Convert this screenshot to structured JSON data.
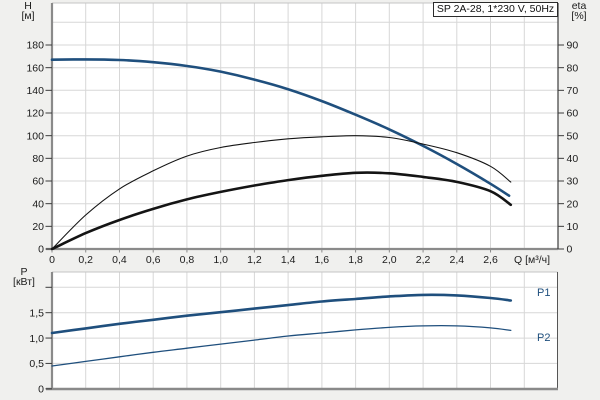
{
  "title_box": {
    "text": "SP 2A-28, 1*230 V, 50Hz"
  },
  "axes_units": {
    "h_symbol": "H",
    "h_unit": "[м]",
    "eta_symbol": "eta",
    "eta_unit": "[%]",
    "p_symbol": "P",
    "p_unit": "[кВт]",
    "q_label": "Q [м³/ч]"
  },
  "curve_labels": {
    "p1": "P1",
    "p2": "P2"
  },
  "colors": {
    "curve_blue": "#1f4f7d",
    "curve_black": "#141414",
    "grid": "#d7d7d7",
    "axis_gray": "#8a8a8a",
    "axis_dark": "#3c3c3c",
    "background": "#f0f0ee",
    "plot_background": "#ffffff",
    "tick_text": "#1b1b1b",
    "blue_label": "#1f4f7d"
  },
  "chart_data": [
    {
      "type": "line",
      "title": "SP 2A-28, 1*230 V, 50Hz",
      "xlabel": "Q [м³/ч]",
      "ylabel_left": "H [м]",
      "ylabel_right": "eta [%]",
      "xlim": [
        0,
        3.0
      ],
      "grid": true,
      "x_ticks": {
        "values": [
          0,
          0.2,
          0.4,
          0.6,
          0.8,
          1.0,
          1.2,
          1.4,
          1.6,
          1.8,
          2.0,
          2.2,
          2.4,
          2.6
        ],
        "labels": [
          "0",
          "0,2",
          "0,4",
          "0,6",
          "0,8",
          "1,0",
          "1,2",
          "1,4",
          "1,6",
          "1,8",
          "2,0",
          "2,2",
          "2,4",
          "2,6"
        ]
      },
      "left_axis": {
        "ylim": [
          0,
          217
        ],
        "tick_values": [
          0,
          20,
          40,
          60,
          80,
          100,
          120,
          140,
          160,
          180
        ],
        "tick_labels": [
          "0",
          "20",
          "40",
          "60",
          "80",
          "100",
          "120",
          "140",
          "160",
          "180"
        ],
        "grid_values": [
          20,
          40,
          60,
          80,
          100,
          120,
          140,
          160,
          180,
          200
        ]
      },
      "right_axis": {
        "ylim": [
          0,
          108
        ],
        "tick_values": [
          0,
          10,
          20,
          30,
          40,
          50,
          60,
          70,
          80,
          90
        ],
        "tick_labels": [
          "0",
          "10",
          "20",
          "30",
          "40",
          "50",
          "60",
          "70",
          "80",
          "90"
        ]
      },
      "series": [
        {
          "name": "H",
          "axis": "left",
          "color": "blue",
          "width": 2.6,
          "points": [
            [
              0,
              167
            ],
            [
              0.2,
              167.3
            ],
            [
              0.4,
              166.8
            ],
            [
              0.6,
              164.8
            ],
            [
              0.8,
              161.5
            ],
            [
              1.0,
              156.5
            ],
            [
              1.2,
              149.5
            ],
            [
              1.4,
              141.0
            ],
            [
              1.6,
              130.5
            ],
            [
              1.8,
              118.5
            ],
            [
              2.0,
              105.5
            ],
            [
              2.2,
              91.0
            ],
            [
              2.4,
              75.0
            ],
            [
              2.6,
              57.5
            ],
            [
              2.71,
              47.0
            ]
          ]
        },
        {
          "name": "eta-pump",
          "axis": "right",
          "color": "black",
          "width": 1.1,
          "points": [
            [
              0,
              0
            ],
            [
              0.2,
              15
            ],
            [
              0.4,
              26.5
            ],
            [
              0.6,
              34.5
            ],
            [
              0.8,
              41
            ],
            [
              1.0,
              44.8
            ],
            [
              1.2,
              47
            ],
            [
              1.4,
              48.6
            ],
            [
              1.6,
              49.5
            ],
            [
              1.8,
              50
            ],
            [
              2.0,
              49.2
            ],
            [
              2.2,
              46.3
            ],
            [
              2.4,
              42.5
            ],
            [
              2.6,
              36.5
            ],
            [
              2.72,
              29.5
            ]
          ]
        },
        {
          "name": "eta-total",
          "axis": "right",
          "color": "black",
          "width": 2.6,
          "points": [
            [
              0,
              0
            ],
            [
              0.2,
              7
            ],
            [
              0.4,
              12.8
            ],
            [
              0.6,
              17.7
            ],
            [
              0.8,
              21.9
            ],
            [
              1.0,
              25.2
            ],
            [
              1.2,
              28
            ],
            [
              1.4,
              30.4
            ],
            [
              1.6,
              32.3
            ],
            [
              1.8,
              33.6
            ],
            [
              2.0,
              33.4
            ],
            [
              2.2,
              31.8
            ],
            [
              2.4,
              29.6
            ],
            [
              2.6,
              25.5
            ],
            [
              2.72,
              19.5
            ]
          ]
        }
      ]
    },
    {
      "type": "line",
      "title": "",
      "xlabel": "Q [м³/ч]",
      "ylabel_left": "P [кВт]",
      "xlim": [
        0,
        3.0
      ],
      "grid": true,
      "left_axis": {
        "ylim": [
          0,
          2.3
        ],
        "tick_values": [
          0,
          0.5,
          1.0,
          1.5,
          2.0
        ],
        "tick_labels": [
          "0",
          "0,5",
          "1,0",
          "1,5",
          ""
        ],
        "grid_values": [
          0.5,
          1.0,
          1.5,
          2.0
        ]
      },
      "series": [
        {
          "name": "P1",
          "axis": "left",
          "color": "blue",
          "width": 2.6,
          "points": [
            [
              0,
              1.1
            ],
            [
              0.2,
              1.19
            ],
            [
              0.4,
              1.28
            ],
            [
              0.6,
              1.36
            ],
            [
              0.8,
              1.44
            ],
            [
              1.0,
              1.51
            ],
            [
              1.2,
              1.58
            ],
            [
              1.4,
              1.65
            ],
            [
              1.6,
              1.72
            ],
            [
              1.8,
              1.77
            ],
            [
              2.0,
              1.82
            ],
            [
              2.2,
              1.85
            ],
            [
              2.4,
              1.84
            ],
            [
              2.6,
              1.79
            ],
            [
              2.72,
              1.74
            ]
          ]
        },
        {
          "name": "P2",
          "axis": "left",
          "color": "blue",
          "width": 1.3,
          "points": [
            [
              0,
              0.45
            ],
            [
              0.2,
              0.54
            ],
            [
              0.4,
              0.63
            ],
            [
              0.6,
              0.72
            ],
            [
              0.8,
              0.8
            ],
            [
              1.0,
              0.88
            ],
            [
              1.2,
              0.96
            ],
            [
              1.4,
              1.04
            ],
            [
              1.6,
              1.1
            ],
            [
              1.8,
              1.16
            ],
            [
              2.0,
              1.21
            ],
            [
              2.2,
              1.24
            ],
            [
              2.4,
              1.24
            ],
            [
              2.6,
              1.2
            ],
            [
              2.72,
              1.15
            ]
          ]
        }
      ]
    }
  ]
}
